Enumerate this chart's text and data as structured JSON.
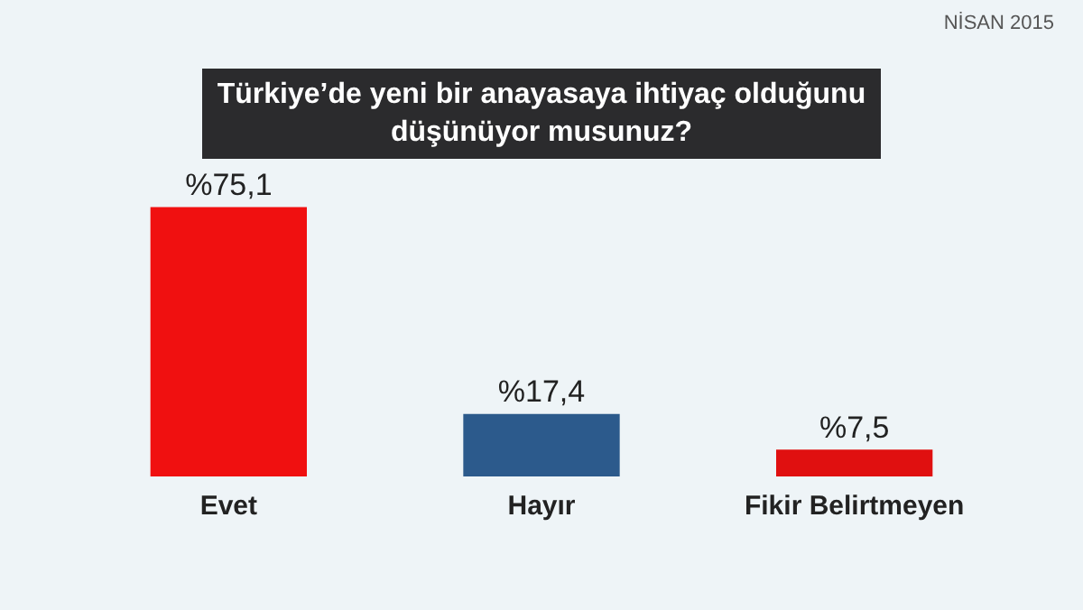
{
  "chart_data": {
    "type": "bar",
    "title": "Türkiye’de yeni bir anayasaya ihtiyaç olduğunu düşünüyor musunuz?",
    "subtitle": "NİSAN 2015",
    "categories": [
      "Evet",
      "Hayır",
      "Fikir Belirtmeyen"
    ],
    "values": [
      75.1,
      17.4,
      7.5
    ],
    "colors": [
      "#f01010",
      "#2c5a8c",
      "#e01010"
    ],
    "value_labels": [
      "%75,1",
      "%17,4",
      "%7,5"
    ],
    "grid": false,
    "legend": false
  }
}
